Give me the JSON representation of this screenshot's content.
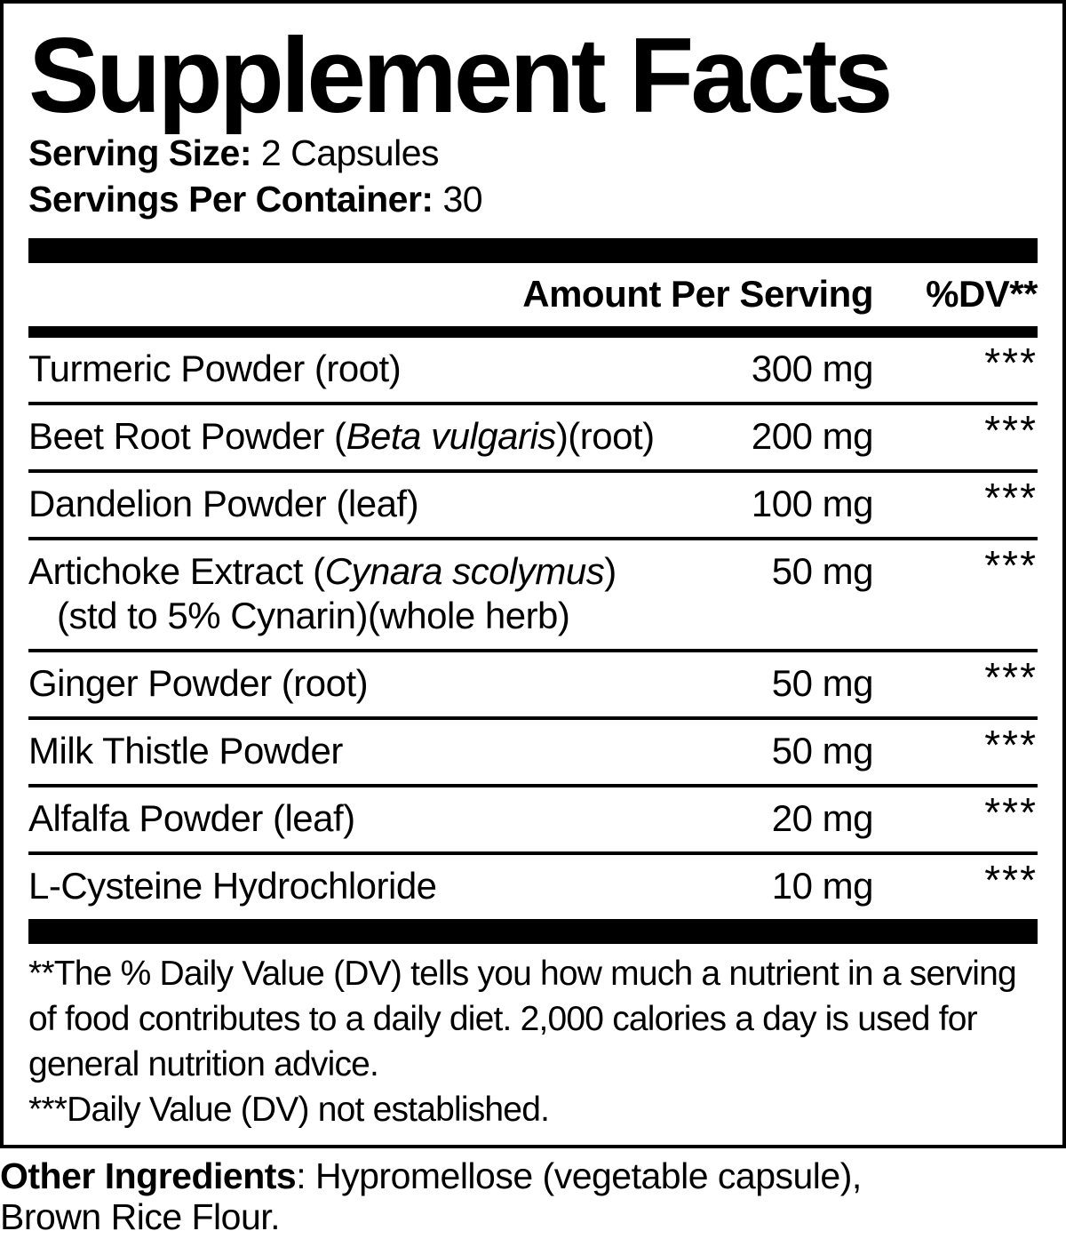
{
  "title": "Supplement Facts",
  "serving": {
    "size_label": "Serving Size:",
    "size_value": "2 Capsules",
    "per_container_label": "Servings Per Container:",
    "per_container_value": "30"
  },
  "table": {
    "amount_header": "Amount Per Serving",
    "dv_header": "%DV**",
    "rows": [
      {
        "name_pre": "Turmeric Powder (root)",
        "amount": "300 mg",
        "dv": "***"
      },
      {
        "name_pre": "Beet Root Powder (",
        "name_italic": "Beta vulgaris",
        "name_post": ")(root)",
        "amount": "200 mg",
        "dv": "***"
      },
      {
        "name_pre": "Dandelion Powder (leaf)",
        "amount": "100 mg",
        "dv": "***"
      },
      {
        "name_pre": "Artichoke Extract (",
        "name_italic": "Cynara scolymus",
        "name_post": ")",
        "name_line2": "(std to 5% Cynarin)(whole herb)",
        "amount": "50 mg",
        "dv": "***"
      },
      {
        "name_pre": "Ginger Powder (root)",
        "amount": "50 mg",
        "dv": "***"
      },
      {
        "name_pre": "Milk Thistle Powder",
        "amount": "50 mg",
        "dv": "***"
      },
      {
        "name_pre": "Alfalfa Powder (leaf)",
        "amount": "20 mg",
        "dv": "***"
      },
      {
        "name_pre": "L-Cysteine Hydrochloride",
        "amount": "10 mg",
        "dv": "***"
      }
    ]
  },
  "footnote": {
    "daily_value_lines": [
      "**The % Daily Value (DV) tells you how much a nutrient in a serving",
      "of food contributes to a daily diet. 2,000 calories a day is used for",
      "general nutrition advice."
    ],
    "not_established": "***Daily Value (DV) not established."
  },
  "other_ingredients": {
    "label": "Other Ingredients",
    "line1": ": Hypromellose (vegetable capsule),",
    "line2": "Brown Rice Flour."
  },
  "colors": {
    "text": "#000000",
    "background": "#ffffff"
  }
}
